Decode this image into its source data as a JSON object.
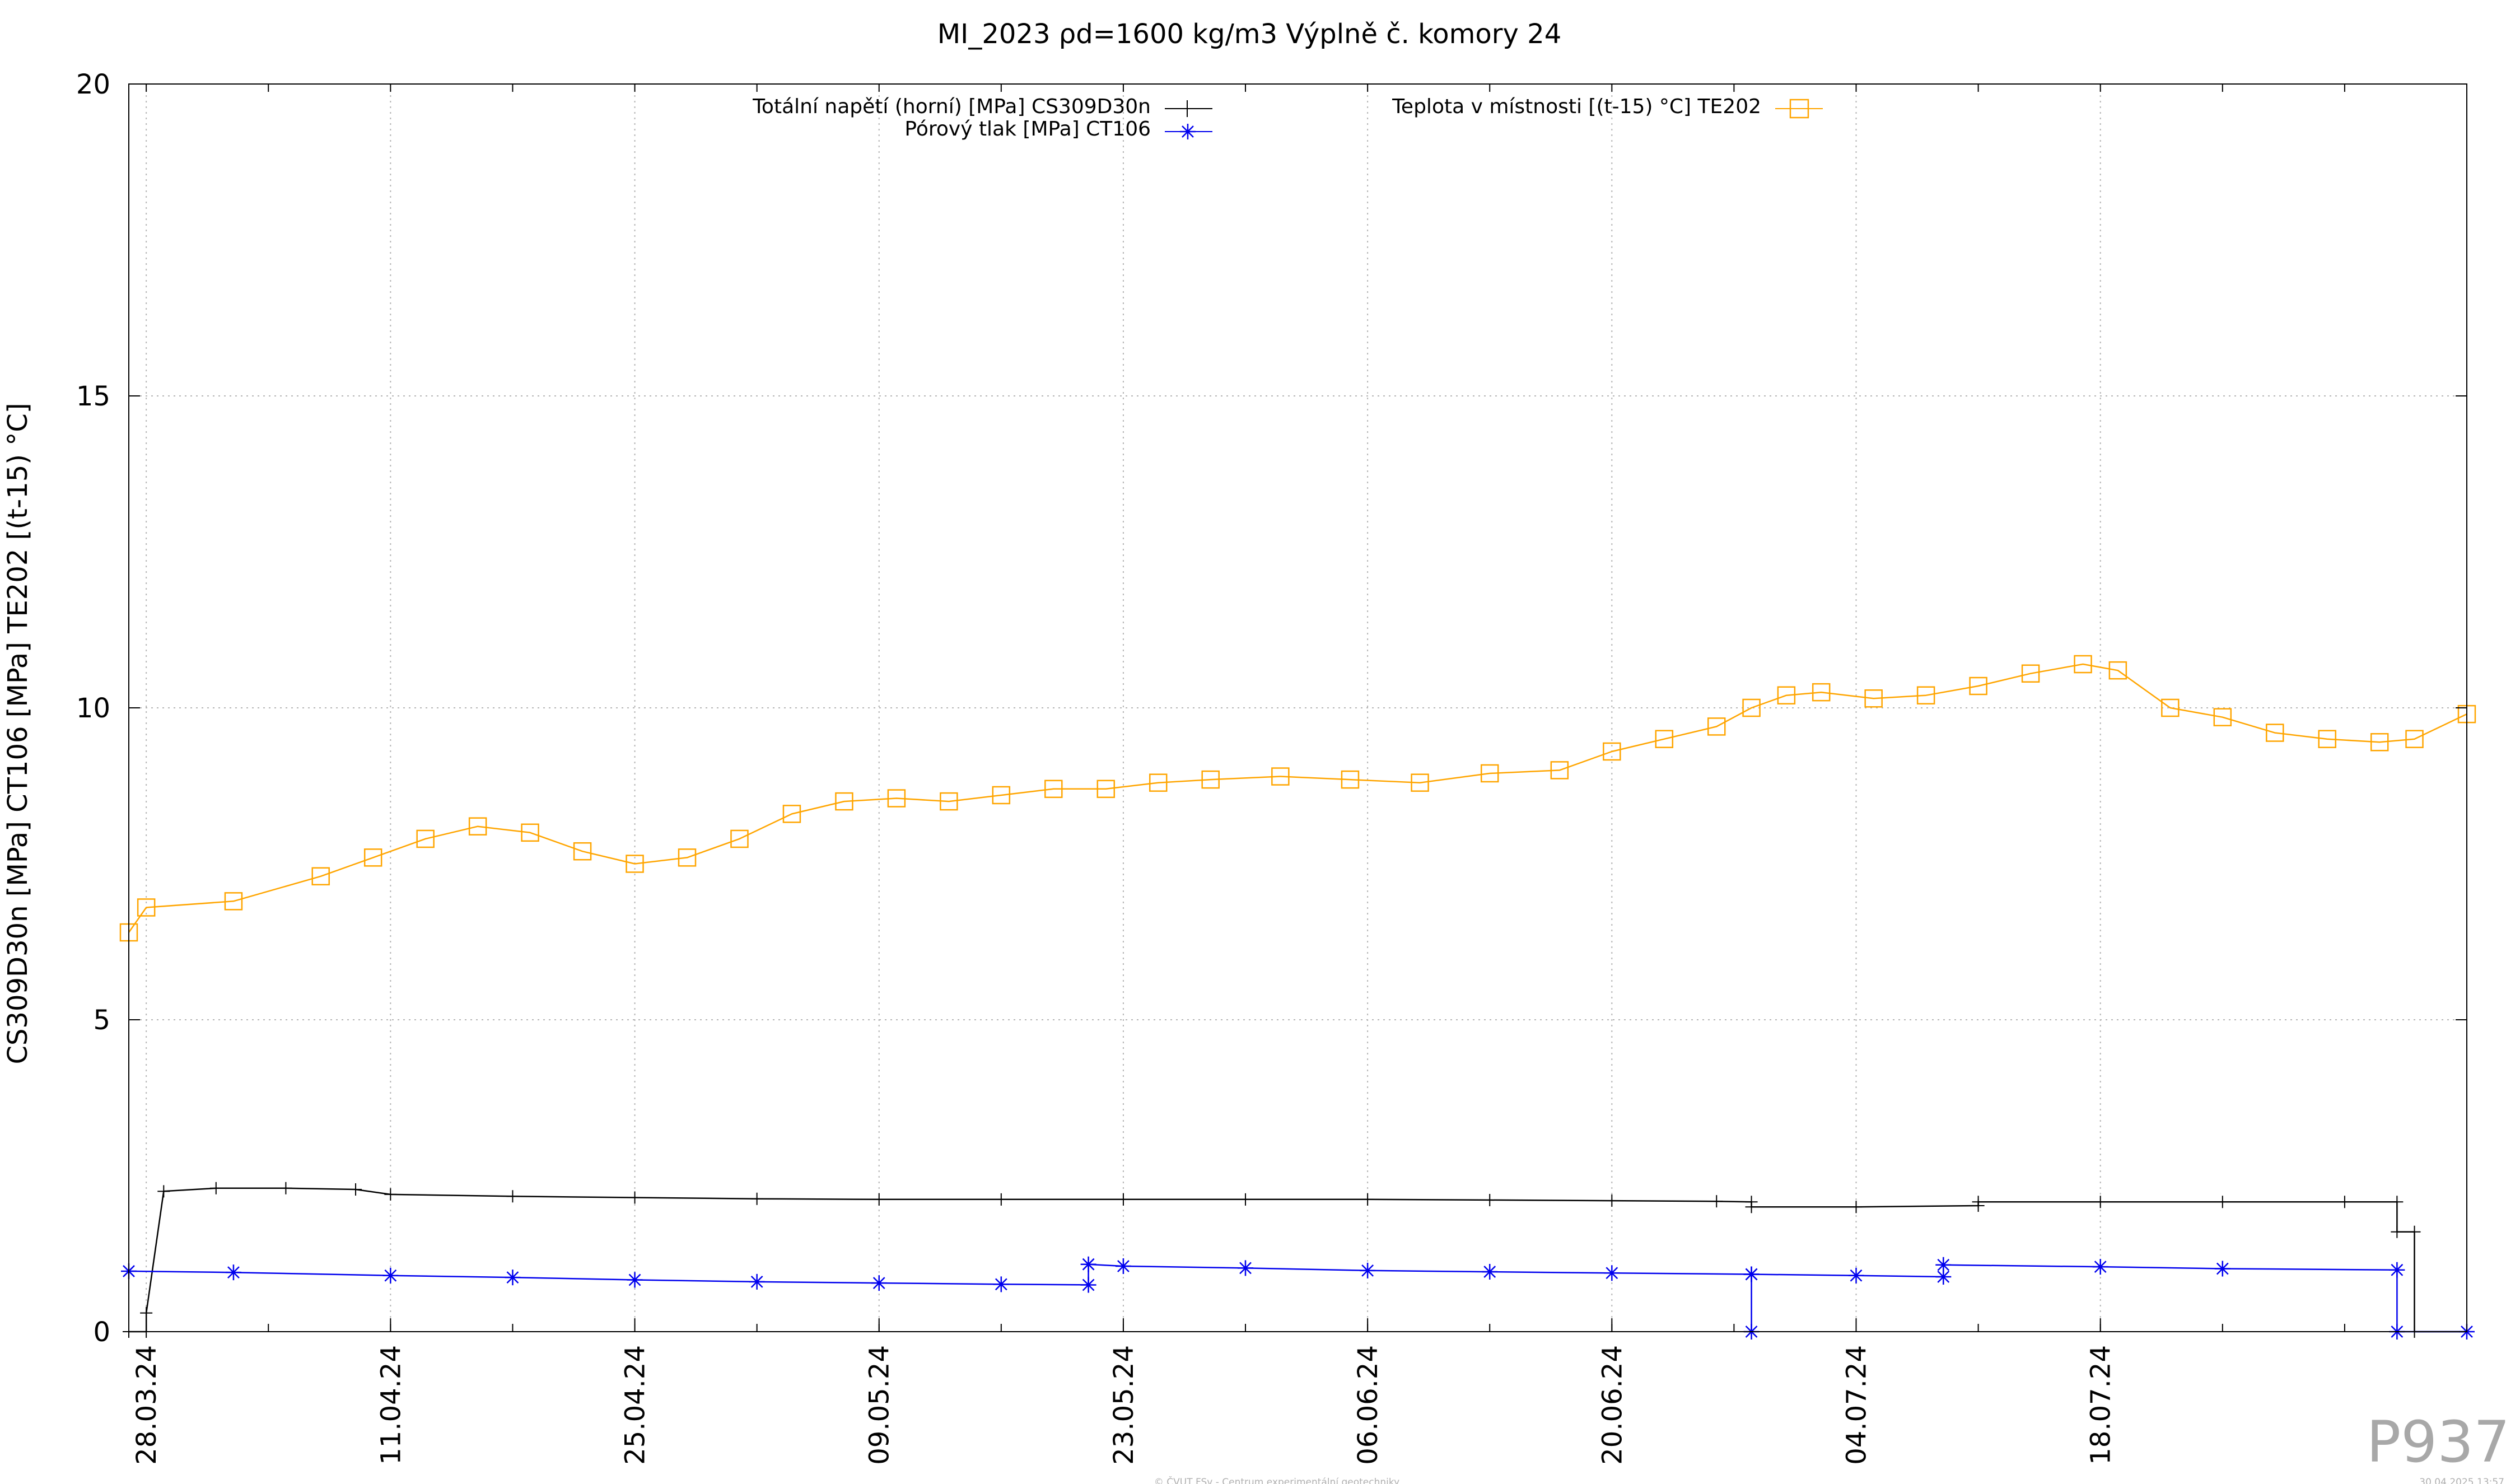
{
  "chart_data": {
    "type": "line",
    "title": "MI_2023 ρd=1600 kg/m3 Výplně č. komory 24",
    "ylabel": "CS309D30n [MPa] CT106 [MPa] TE202 [(t-15) °C]",
    "xlabel": "",
    "ylim": [
      0,
      20
    ],
    "xlim": [
      "2024-03-27",
      "2024-08-08"
    ],
    "yticks": [
      0,
      5,
      10,
      15,
      20
    ],
    "xticks": [
      "28.03.24",
      "11.04.24",
      "25.04.24",
      "09.05.24",
      "23.05.24",
      "06.06.24",
      "20.06.24",
      "04.07.24",
      "18.07.24"
    ],
    "x_tick_dates": [
      "2024-03-28",
      "2024-04-11",
      "2024-04-25",
      "2024-05-09",
      "2024-05-23",
      "2024-06-06",
      "2024-06-20",
      "2024-07-04",
      "2024-07-18"
    ],
    "grid": true,
    "legend_position": "top",
    "series": [
      {
        "name": "Totální napětí (horní) [MPa] CS309D30n",
        "color": "#000000",
        "marker": "plus",
        "x": [
          "2024-03-27",
          "2024-03-28",
          "2024-03-28",
          "2024-03-29",
          "2024-04-01",
          "2024-04-05",
          "2024-04-09",
          "2024-04-11",
          "2024-04-18",
          "2024-04-25",
          "2024-05-02",
          "2024-05-09",
          "2024-05-16",
          "2024-05-23",
          "2024-05-30",
          "2024-06-06",
          "2024-06-13",
          "2024-06-20",
          "2024-06-26",
          "2024-06-28",
          "2024-06-28",
          "2024-07-04",
          "2024-07-11",
          "2024-07-11",
          "2024-07-18",
          "2024-07-25",
          "2024-08-01",
          "2024-08-04",
          "2024-08-04",
          "2024-08-05",
          "2024-08-05",
          "2024-08-08"
        ],
        "values": [
          0,
          0,
          0.3,
          2.25,
          2.3,
          2.3,
          2.28,
          2.2,
          2.17,
          2.15,
          2.13,
          2.12,
          2.12,
          2.12,
          2.12,
          2.12,
          2.11,
          2.1,
          2.09,
          2.08,
          2.0,
          2.0,
          2.02,
          2.08,
          2.08,
          2.08,
          2.08,
          2.08,
          1.6,
          1.6,
          0,
          0
        ]
      },
      {
        "name": "Pórový tlak [MPa] CT106",
        "color": "#0000ee",
        "marker": "star",
        "x": [
          "2024-03-27",
          "2024-04-02",
          "2024-04-11",
          "2024-04-18",
          "2024-04-25",
          "2024-05-02",
          "2024-05-09",
          "2024-05-16",
          "2024-05-21",
          "2024-05-21",
          "2024-05-23",
          "2024-05-30",
          "2024-06-06",
          "2024-06-13",
          "2024-06-20",
          "2024-06-28",
          "2024-06-28",
          "2024-06-28",
          "2024-07-04",
          "2024-07-09",
          "2024-07-09",
          "2024-07-18",
          "2024-07-25",
          "2024-08-04",
          "2024-08-04",
          "2024-08-08"
        ],
        "values": [
          0.97,
          0.95,
          0.9,
          0.87,
          0.83,
          0.8,
          0.78,
          0.76,
          0.75,
          1.08,
          1.05,
          1.02,
          0.98,
          0.96,
          0.94,
          0.92,
          0,
          0.92,
          0.9,
          0.88,
          1.07,
          1.04,
          1.01,
          0.99,
          0,
          0
        ]
      },
      {
        "name": "Teplota v místnosti [(t-15) °C] TE202",
        "color": "#ffa500",
        "marker": "square",
        "x": [
          "2024-03-27",
          "2024-03-28",
          "2024-04-02",
          "2024-04-07",
          "2024-04-10",
          "2024-04-13",
          "2024-04-16",
          "2024-04-19",
          "2024-04-22",
          "2024-04-25",
          "2024-04-28",
          "2024-05-01",
          "2024-05-04",
          "2024-05-07",
          "2024-05-10",
          "2024-05-13",
          "2024-05-16",
          "2024-05-19",
          "2024-05-22",
          "2024-05-25",
          "2024-05-28",
          "2024-06-01",
          "2024-06-05",
          "2024-06-09",
          "2024-06-13",
          "2024-06-17",
          "2024-06-20",
          "2024-06-23",
          "2024-06-26",
          "2024-06-28",
          "2024-06-30",
          "2024-07-02",
          "2024-07-05",
          "2024-07-08",
          "2024-07-11",
          "2024-07-14",
          "2024-07-17",
          "2024-07-19",
          "2024-07-22",
          "2024-07-25",
          "2024-07-28",
          "2024-07-31",
          "2024-08-03",
          "2024-08-05",
          "2024-08-08"
        ],
        "values": [
          6.4,
          6.8,
          6.9,
          7.3,
          7.6,
          7.9,
          8.1,
          8.0,
          7.7,
          7.5,
          7.6,
          7.9,
          8.3,
          8.5,
          8.55,
          8.5,
          8.6,
          8.7,
          8.7,
          8.8,
          8.85,
          8.9,
          8.85,
          8.8,
          8.95,
          9.0,
          9.3,
          9.5,
          9.7,
          10.0,
          10.2,
          10.25,
          10.15,
          10.2,
          10.35,
          10.55,
          10.7,
          10.6,
          10.0,
          9.85,
          9.6,
          9.5,
          9.45,
          9.5,
          9.9
        ]
      }
    ]
  },
  "watermark": "P937",
  "footer": {
    "left": "© ČVUT FSv - Centrum experimentální geotechniky",
    "right": "30.04.2025 13:57"
  }
}
